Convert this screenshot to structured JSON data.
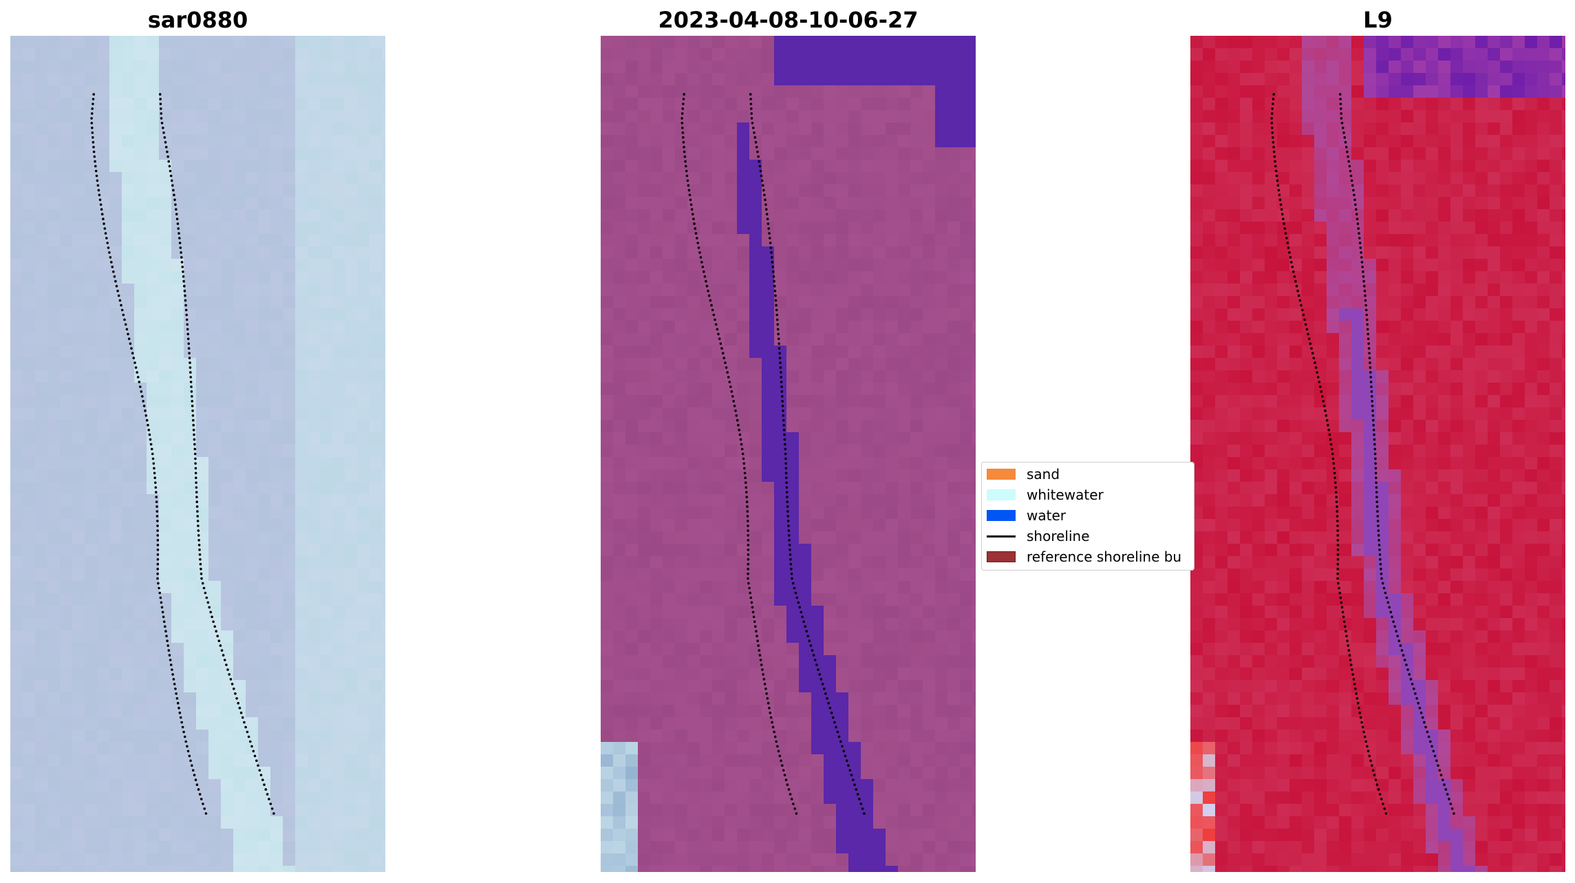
{
  "panels": [
    {
      "id": "sar",
      "title": "sar0880"
    },
    {
      "id": "classified",
      "title": "2023-04-08-10-06-27"
    },
    {
      "id": "l9",
      "title": "L9"
    }
  ],
  "legend": {
    "items": [
      {
        "label": "sand",
        "color": "#f58a3c",
        "kind": "patch"
      },
      {
        "label": "whitewater",
        "color": "#cdfcfc",
        "kind": "patch"
      },
      {
        "label": "water",
        "color": "#0055f5",
        "kind": "patch"
      },
      {
        "label": "shoreline",
        "color": "#000000",
        "kind": "line"
      },
      {
        "label": "reference shoreline bu",
        "color": "#9b3235",
        "kind": "patch"
      }
    ]
  },
  "colors": {
    "sar_base": "#b4c4dc",
    "sar_channel": "#c8e8ee",
    "classified_base": "#a4508e",
    "classified_water": "#5a28a8",
    "l9_base": "#c8143c",
    "l9_channel": "#a85ab8",
    "shoreline_dots": "#000000"
  }
}
